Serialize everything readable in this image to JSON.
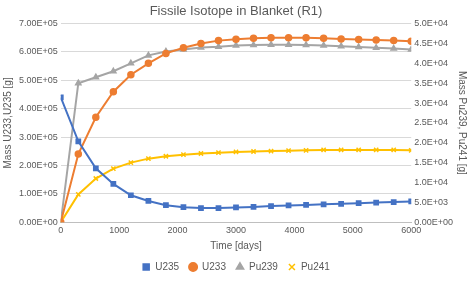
{
  "chart_data": {
    "type": "line",
    "title": "Fissile Isotope in Blanket (R1)",
    "x_label": "Time [days]",
    "y_label": "Mass U233,U235 [g]",
    "y2_label": "Mass Pu239, Pu241 [g]",
    "x": [
      0,
      300,
      600,
      900,
      1200,
      1500,
      1800,
      2100,
      2400,
      2700,
      3000,
      3300,
      3600,
      3900,
      4200,
      4500,
      4800,
      5100,
      5400,
      5700,
      6000
    ],
    "series": [
      {
        "name": "U235",
        "color": "#4472c4",
        "marker": "square",
        "axis": "y",
        "values": [
          440000,
          285000,
          190000,
          135000,
          95000,
          75000,
          60000,
          53000,
          50000,
          50000,
          52000,
          54000,
          57000,
          59000,
          61000,
          63000,
          65000,
          67000,
          69000,
          71000,
          73000
        ]
      },
      {
        "name": "U233",
        "color": "#ed7d31",
        "marker": "circle",
        "axis": "y",
        "values": [
          0,
          240000,
          370000,
          460000,
          520000,
          560000,
          595000,
          615000,
          630000,
          640000,
          645000,
          648000,
          650000,
          650000,
          650000,
          648000,
          646000,
          644000,
          642000,
          640000,
          638000
        ]
      },
      {
        "name": "Pu239",
        "color": "#a5a5a5",
        "marker": "triangle",
        "axis": "y2",
        "values": [
          0,
          35000,
          36500,
          38000,
          40000,
          42000,
          43000,
          43500,
          44000,
          44200,
          44500,
          44600,
          44700,
          44700,
          44600,
          44500,
          44300,
          44100,
          43900,
          43700,
          43500
        ]
      },
      {
        "name": "Pu241",
        "color": "#ffc000",
        "marker": "x",
        "axis": "y2",
        "values": [
          0,
          7000,
          11000,
          13500,
          15000,
          16000,
          16600,
          17000,
          17300,
          17500,
          17700,
          17800,
          17900,
          18000,
          18100,
          18200,
          18200,
          18200,
          18200,
          18200,
          18100
        ]
      }
    ],
    "xlim": [
      0,
      6000
    ],
    "xticks": [
      0,
      1000,
      2000,
      3000,
      4000,
      5000,
      6000
    ],
    "ylim": [
      0,
      700000
    ],
    "yticks": [
      {
        "value": 0,
        "label": "0.00E+00"
      },
      {
        "value": 100000,
        "label": "1.00E+05"
      },
      {
        "value": 200000,
        "label": "2.00E+05"
      },
      {
        "value": 300000,
        "label": "3.00E+05"
      },
      {
        "value": 400000,
        "label": "4.00E+05"
      },
      {
        "value": 500000,
        "label": "5.00E+05"
      },
      {
        "value": 600000,
        "label": "6.00E+05"
      },
      {
        "value": 700000,
        "label": "7.00E+05"
      }
    ],
    "y2lim": [
      0,
      50000
    ],
    "y2ticks": [
      {
        "value": 0,
        "label": "0.00E+00"
      },
      {
        "value": 5000,
        "label": "5.0E+03"
      },
      {
        "value": 10000,
        "label": "1.0E+04"
      },
      {
        "value": 15000,
        "label": "1.5E+04"
      },
      {
        "value": 20000,
        "label": "2.0E+04"
      },
      {
        "value": 25000,
        "label": "2.5E+04"
      },
      {
        "value": 30000,
        "label": "3.0E+04"
      },
      {
        "value": 35000,
        "label": "3.5E+04"
      },
      {
        "value": 40000,
        "label": "4.0E+04"
      },
      {
        "value": 45000,
        "label": "4.5E+04"
      },
      {
        "value": 50000,
        "label": "5.0E+04"
      }
    ],
    "grid": true,
    "legend": "bottom"
  }
}
